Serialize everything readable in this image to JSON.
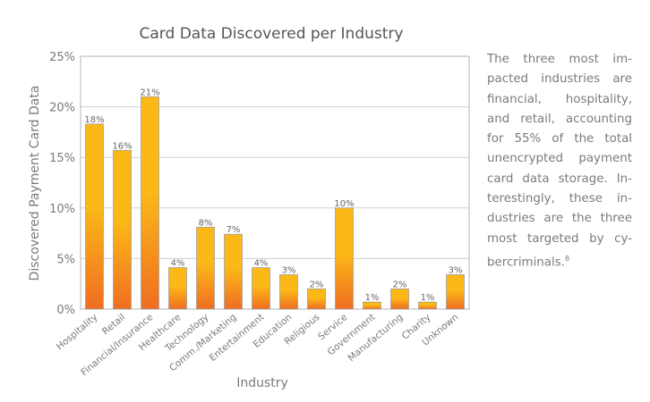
{
  "chart_data": {
    "type": "bar",
    "title": "Card Data Discovered per Industry",
    "xlabel": "Industry",
    "ylabel": "Discovered Payment Card Data",
    "ylim": [
      0,
      25
    ],
    "yticks": [
      "0%",
      "5%",
      "10%",
      "15%",
      "20%",
      "25%"
    ],
    "grid": true,
    "categories": [
      "Hospitality",
      "Retail",
      "Financial/Insurance",
      "Healthcare",
      "Technology",
      "Comm./Marketing",
      "Entertainment",
      "Education",
      "Religious",
      "Service",
      "Government",
      "Manufacturing",
      "Charity",
      "Unknown"
    ],
    "values": [
      18.3,
      15.7,
      21.0,
      4.1,
      8.1,
      7.4,
      4.1,
      3.4,
      2.0,
      10.0,
      0.7,
      2.0,
      0.7,
      3.4
    ],
    "data_labels": [
      "18%",
      "16%",
      "21%",
      "4%",
      "8%",
      "7%",
      "4%",
      "3%",
      "2%",
      "10%",
      "1%",
      "2%",
      "1%",
      "3%"
    ],
    "colors": {
      "bar_top": "#fbb817",
      "bar_bottom": "#f06d22",
      "text": "#7a7a7a",
      "grid": "#cfcfcf"
    }
  },
  "sidebar_text": {
    "lines": [
      "The three most im-",
      "pacted industries are",
      "financial, hospitality,",
      "and retail, accounting",
      "for 55% of the total",
      "unencrypted payment",
      "card data storage. In-",
      "terestingly, these in-",
      "dustries are the three",
      "most targeted by cy-",
      "bercriminals."
    ],
    "footnote": "8"
  }
}
